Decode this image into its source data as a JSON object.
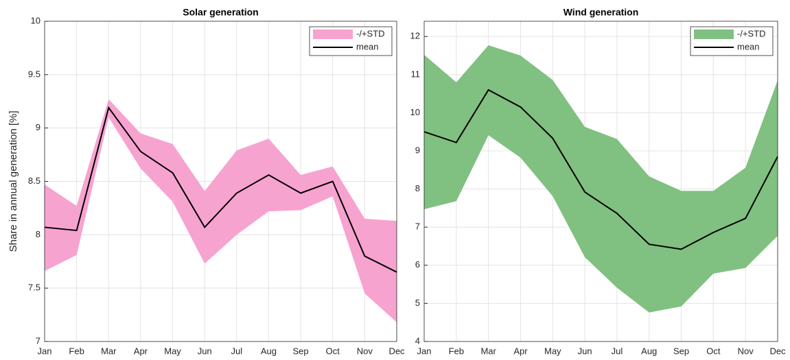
{
  "chart_data": [
    {
      "type": "line",
      "title": "Solar generation",
      "ylabel": "Share in annual generation [%]",
      "categories": [
        "Jan",
        "Feb",
        "Mar",
        "Apr",
        "May",
        "Jun",
        "Jul",
        "Aug",
        "Sep",
        "Oct",
        "Nov",
        "Dec"
      ],
      "ylim": [
        7,
        10
      ],
      "yticks": [
        7,
        7.5,
        8,
        8.5,
        9,
        9.5,
        10
      ],
      "grid": true,
      "legend": "northeast",
      "series": [
        {
          "name": "-/+STD",
          "color": "#f7a3d0",
          "upper": [
            8.47,
            8.27,
            9.27,
            8.95,
            8.85,
            8.41,
            8.79,
            8.9,
            8.56,
            8.64,
            8.15,
            8.13
          ],
          "lower": [
            7.66,
            7.81,
            9.1,
            8.62,
            8.31,
            7.73,
            8.0,
            8.22,
            8.23,
            8.36,
            7.45,
            7.18
          ]
        },
        {
          "name": "mean",
          "color": "#000000",
          "values": [
            8.07,
            8.04,
            9.19,
            8.78,
            8.58,
            8.07,
            8.39,
            8.56,
            8.39,
            8.5,
            7.8,
            7.65
          ]
        }
      ]
    },
    {
      "type": "line",
      "title": "Wind generation",
      "categories": [
        "Jan",
        "Feb",
        "Mar",
        "Apr",
        "May",
        "Jun",
        "Jul",
        "Aug",
        "Sep",
        "Oct",
        "Nov",
        "Dec"
      ],
      "ylim": [
        4,
        12.4
      ],
      "yticks": [
        4,
        5,
        6,
        7,
        8,
        9,
        10,
        11,
        12
      ],
      "grid": true,
      "legend": "northeast",
      "series": [
        {
          "name": "-/+STD",
          "color": "#80c080",
          "upper": [
            11.52,
            10.8,
            11.77,
            11.5,
            10.86,
            9.63,
            9.31,
            8.33,
            7.95,
            7.95,
            8.56,
            10.85
          ],
          "lower": [
            7.47,
            7.68,
            9.41,
            8.82,
            7.81,
            6.21,
            5.41,
            4.76,
            4.92,
            5.78,
            5.93,
            6.77
          ]
        },
        {
          "name": "mean",
          "color": "#000000",
          "values": [
            9.5,
            9.22,
            10.6,
            10.15,
            9.33,
            7.92,
            7.36,
            6.55,
            6.42,
            6.86,
            7.23,
            8.85
          ]
        }
      ]
    }
  ]
}
